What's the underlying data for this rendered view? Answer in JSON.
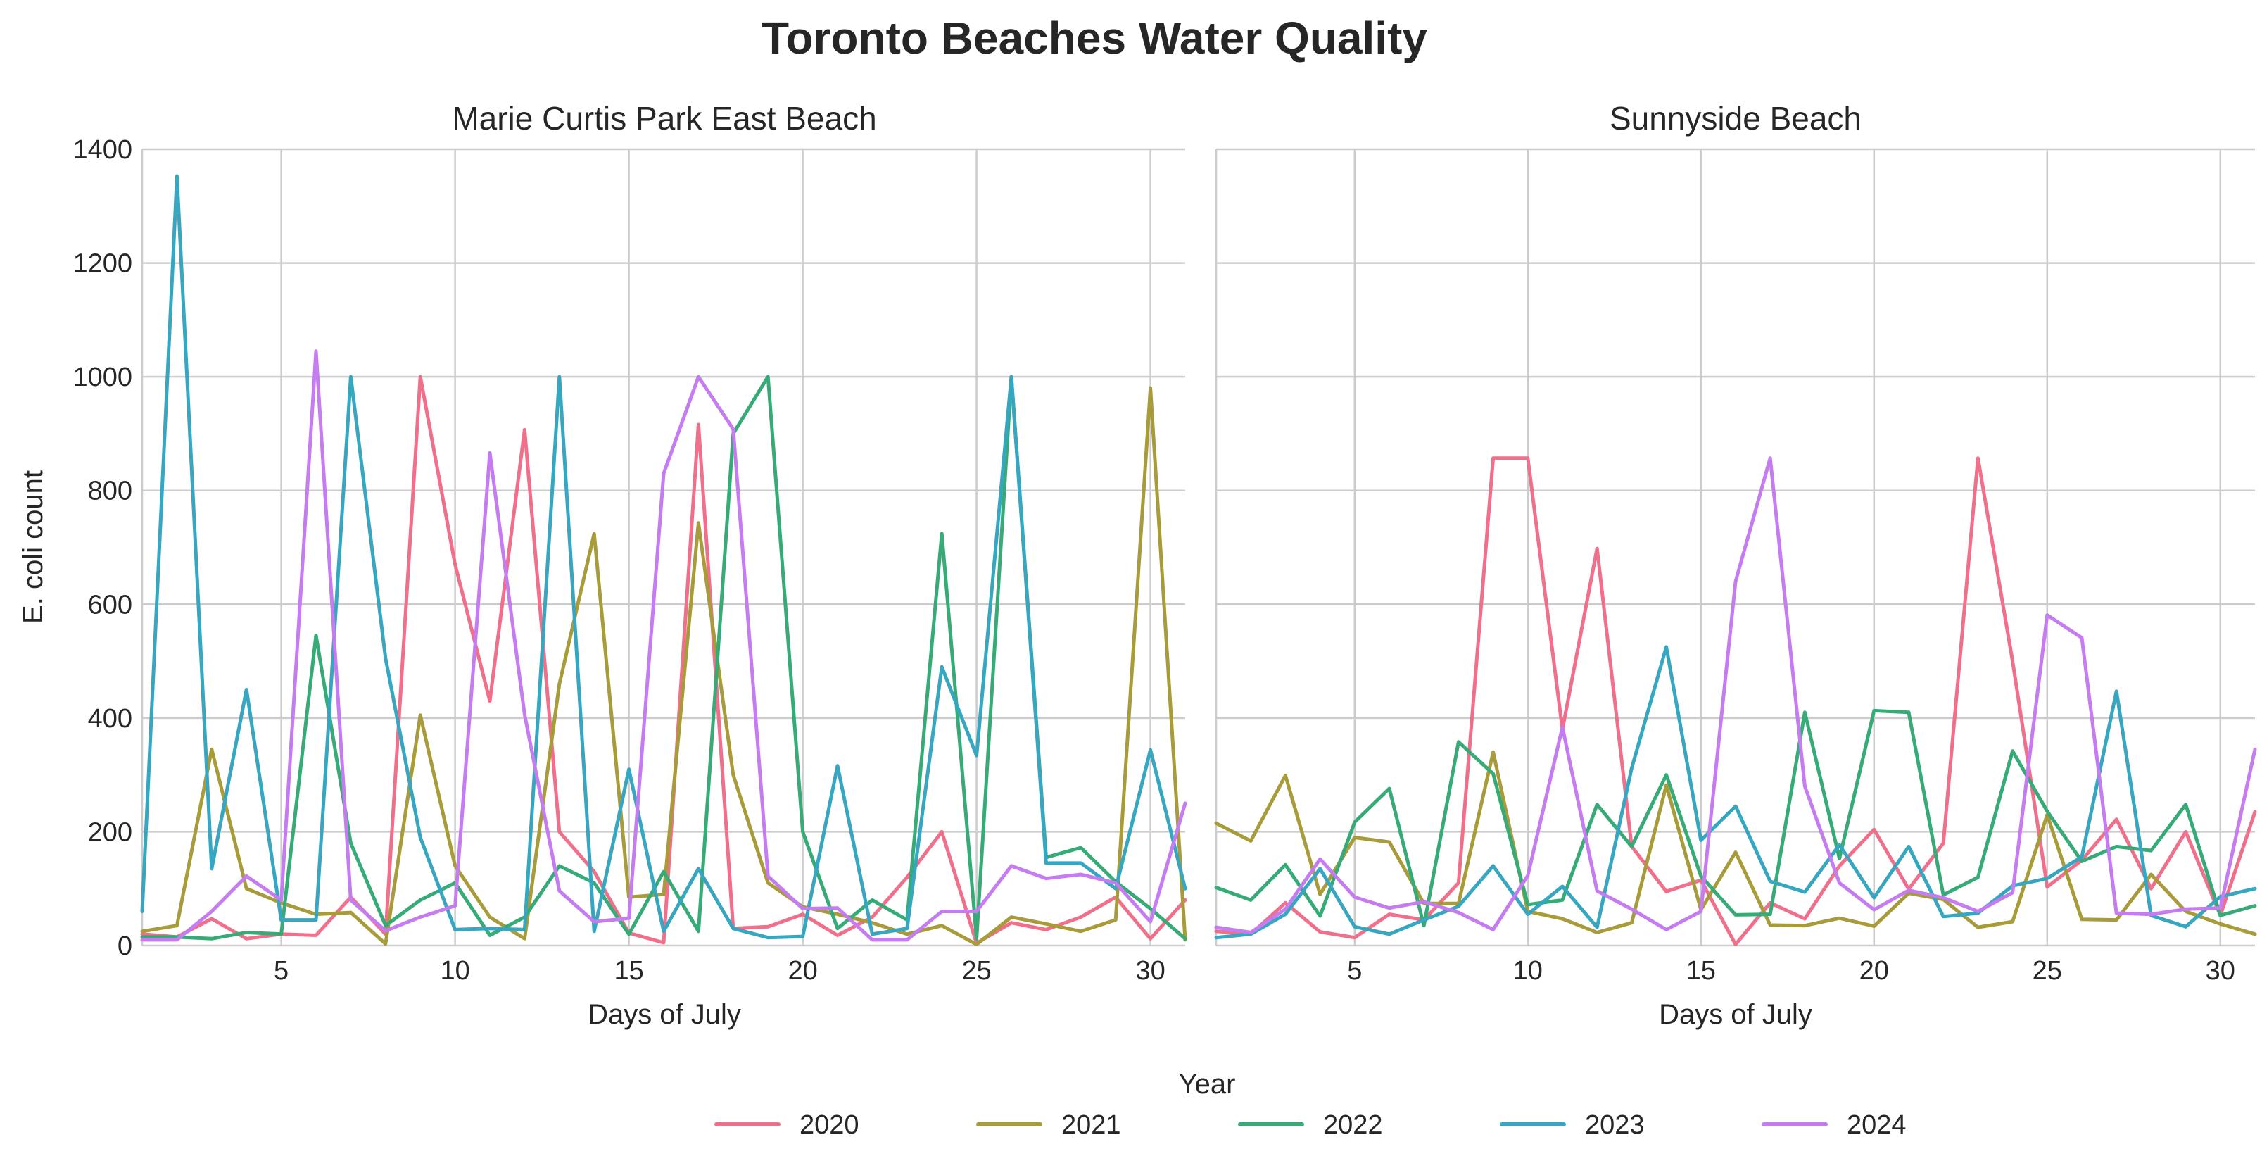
{
  "chart_data": {
    "type": "line",
    "title": "Toronto Beaches Water Quality",
    "ylabel": "E. coli count",
    "xlabel": "Days of July",
    "xlim": [
      1,
      31
    ],
    "ylim": [
      0,
      1400
    ],
    "x_ticks": [
      5,
      10,
      15,
      20,
      25,
      30
    ],
    "y_ticks": [
      0,
      200,
      400,
      600,
      800,
      1000,
      1200,
      1400
    ],
    "grid": true,
    "shared_y": true,
    "legend": {
      "title": "Year",
      "placement": "bottom-center"
    },
    "series_meta": [
      {
        "name": "2020",
        "color": "#f06f8a"
      },
      {
        "name": "2021",
        "color": "#a89b3a"
      },
      {
        "name": "2022",
        "color": "#36ab78"
      },
      {
        "name": "2023",
        "color": "#37a6c1"
      },
      {
        "name": "2024",
        "color": "#c57cf0"
      }
    ],
    "panels": [
      {
        "title": "Marie Curtis Park East Beach",
        "x": [
          1,
          2,
          3,
          4,
          5,
          6,
          7,
          8,
          9,
          10,
          11,
          12,
          13,
          14,
          15,
          16,
          17,
          18,
          19,
          20,
          21,
          22,
          23,
          24,
          25,
          26,
          27,
          28,
          29,
          30,
          31
        ],
        "series": [
          {
            "name": "2020",
            "values": [
              20,
              15,
              47,
              12,
              20,
              18,
              85,
              20,
              1000,
              670,
              430,
              907,
              200,
              130,
              22,
              5,
              916,
              30,
              33,
              55,
              18,
              50,
              120,
              200,
              4,
              40,
              28,
              50,
              85,
              12,
              80
            ]
          },
          {
            "name": "2021",
            "values": [
              25,
              35,
              345,
              100,
              75,
              55,
              58,
              3,
              405,
              140,
              50,
              12,
              460,
              724,
              85,
              90,
              743,
              300,
              110,
              68,
              55,
              40,
              20,
              35,
              2,
              50,
              38,
              25,
              45,
              980,
              10
            ]
          },
          {
            "name": "2022",
            "values": [
              15,
              15,
              12,
              23,
              20,
              545,
              180,
              35,
              80,
              110,
              18,
              50,
              140,
              110,
              20,
              130,
              25,
              900,
              1000,
              200,
              30,
              80,
              45,
              724,
              12,
              1000,
              155,
              172,
              112,
              65,
              12
            ]
          },
          {
            "name": "2023",
            "values": [
              60,
              1353,
              135,
              450,
              45,
              45,
              1000,
              505,
              190,
              28,
              30,
              28,
              1000,
              25,
              310,
              25,
              135,
              30,
              14,
              16,
              316,
              20,
              30,
              490,
              334,
              1000,
              145,
              145,
              100,
              344,
              100
            ]
          },
          {
            "name": "2024",
            "values": [
              10,
              10,
              60,
              122,
              80,
              1045,
              80,
              26,
              50,
              70,
              866,
              406,
              96,
              42,
              48,
              830,
              1000,
              908,
              122,
              65,
              66,
              10,
              10,
              60,
              60,
              140,
              118,
              125,
              110,
              42,
              250
            ]
          }
        ]
      },
      {
        "title": "Sunnyside Beach",
        "x": [
          1,
          2,
          3,
          4,
          5,
          6,
          7,
          8,
          9,
          10,
          11,
          12,
          13,
          14,
          15,
          16,
          17,
          18,
          19,
          20,
          21,
          22,
          23,
          24,
          25,
          26,
          27,
          28,
          29,
          30,
          31
        ],
        "series": [
          {
            "name": "2020",
            "values": [
              25,
              20,
              75,
              24,
              14,
              55,
              45,
              110,
              857,
              857,
              380,
              698,
              174,
              95,
              115,
              2,
              75,
              47,
              140,
              204,
              99,
              180,
              857,
              500,
              103,
              150,
              222,
              100,
              200,
              53,
              235
            ]
          },
          {
            "name": "2021",
            "values": [
              215,
              184,
              299,
              90,
              190,
              182,
              74,
              74,
              340,
              60,
              47,
              23,
              40,
              282,
              63,
              164,
              36,
              35,
              48,
              34,
              92,
              81,
              32,
              42,
              230,
              46,
              45,
              125,
              60,
              38,
              20
            ]
          },
          {
            "name": "2022",
            "values": [
              102,
              80,
              142,
              52,
              217,
              276,
              35,
              358,
              302,
              72,
              80,
              248,
              174,
              300,
              122,
              54,
              55,
              410,
              153,
              413,
              410,
              89,
              120,
              342,
              236,
              148,
              174,
              167,
              248,
              53,
              70
            ]
          },
          {
            "name": "2023",
            "values": [
              14,
              20,
              55,
              135,
              33,
              20,
              45,
              69,
              140,
              55,
              104,
              32,
              312,
              525,
              185,
              245,
              113,
              94,
              177,
              84,
              174,
              51,
              57,
              105,
              118,
              156,
              447,
              53,
              33,
              86,
              100
            ]
          },
          {
            "name": "2024",
            "values": [
              32,
              23,
              64,
              152,
              85,
              66,
              77,
              58,
              28,
              123,
              384,
              96,
              64,
              28,
              60,
              640,
              857,
              280,
              110,
              63,
              97,
              84,
              60,
              93,
              581,
              541,
              57,
              55,
              64,
              66,
              345
            ]
          }
        ]
      }
    ]
  }
}
